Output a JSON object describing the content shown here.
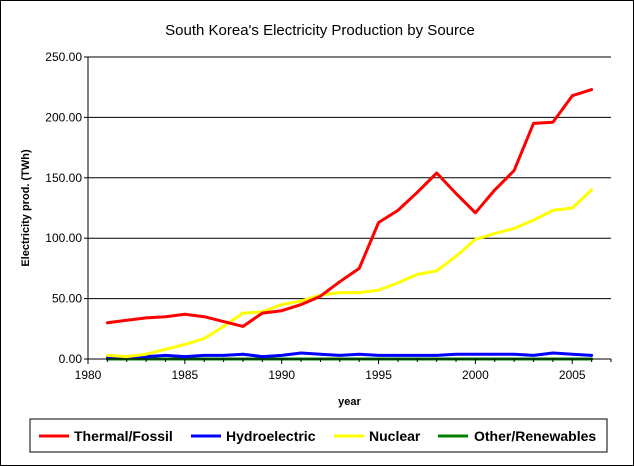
{
  "chart_data": {
    "type": "line",
    "title": "South Korea's Electricity Production by Source",
    "xlabel": "year",
    "ylabel": "Electricity prod. (TWh)",
    "xlim": [
      1980,
      2007
    ],
    "ylim": [
      0,
      250
    ],
    "x_ticks": [
      1980,
      1985,
      1990,
      1995,
      2000,
      2005
    ],
    "y_ticks": [
      "0.00",
      "50.00",
      "100.00",
      "150.00",
      "200.00",
      "250.00"
    ],
    "y_tick_values": [
      0,
      50,
      100,
      150,
      200,
      250
    ],
    "grid": "horizontal",
    "legend_position": "bottom",
    "x": [
      1981,
      1982,
      1983,
      1984,
      1985,
      1986,
      1987,
      1988,
      1989,
      1990,
      1991,
      1992,
      1993,
      1994,
      1995,
      1996,
      1997,
      1998,
      1999,
      2000,
      2001,
      2002,
      2003,
      2004,
      2005,
      2006
    ],
    "series": [
      {
        "name": "Thermal/Fossil",
        "color": "#ff0000",
        "values": [
          30,
          32,
          34,
          35,
          37,
          35,
          31,
          27,
          38,
          40,
          45,
          52,
          64,
          75,
          113,
          123,
          138,
          154,
          137,
          121,
          140,
          156,
          195,
          196,
          218,
          223
        ]
      },
      {
        "name": "Hydroelectric",
        "color": "#0000ff",
        "values": [
          2,
          2,
          2,
          3,
          2,
          3,
          3,
          4,
          2,
          3,
          5,
          4,
          3,
          4,
          3,
          3,
          3,
          3,
          4,
          4,
          4,
          4,
          3,
          5,
          4,
          3
        ]
      },
      {
        "name": "Nuclear",
        "color": "#ffff00",
        "values": [
          3,
          2,
          4,
          8,
          12,
          17,
          27,
          38,
          39,
          45,
          48,
          53,
          55,
          55,
          57,
          63,
          70,
          73,
          85,
          99,
          104,
          108,
          115,
          123,
          125,
          140
        ]
      },
      {
        "name": "Other/Renewables",
        "color": "#008000",
        "values": [
          0,
          0,
          0,
          0,
          0,
          0,
          0,
          0,
          0,
          0,
          0,
          0,
          0,
          0,
          0,
          0,
          0,
          0,
          0,
          0,
          0,
          0,
          0,
          0,
          0,
          0
        ]
      }
    ]
  }
}
